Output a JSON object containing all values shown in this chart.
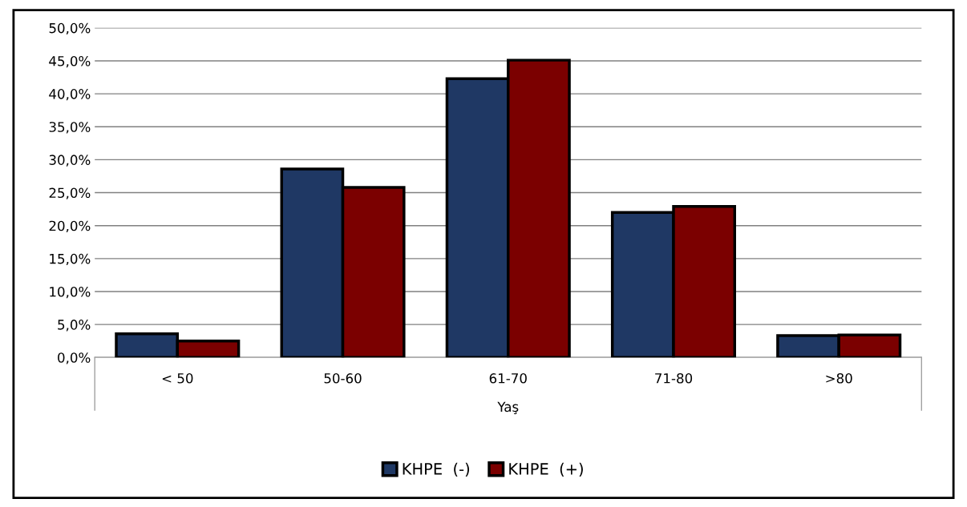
{
  "chart_data": {
    "type": "bar",
    "xlabel": "Yaş",
    "categories": [
      "< 50",
      "50-60",
      "61-70",
      "71-80",
      ">80"
    ],
    "series": [
      {
        "name": "KHPE  (-)",
        "color": "#1f3864",
        "values": [
          3.6,
          28.6,
          42.3,
          22.0,
          3.3
        ]
      },
      {
        "name": "KHPE  (+)",
        "color": "#7b0000",
        "values": [
          2.5,
          25.8,
          45.1,
          22.9,
          3.4
        ]
      }
    ],
    "ylim": [
      0,
      50
    ],
    "yticks": [
      {
        "value": 0,
        "label": "0,0%"
      },
      {
        "value": 5,
        "label": "5,0%"
      },
      {
        "value": 10,
        "label": "10,0%"
      },
      {
        "value": 15,
        "label": "15,0%"
      },
      {
        "value": 20,
        "label": "20,0%"
      },
      {
        "value": 25,
        "label": "25,0%"
      },
      {
        "value": 30,
        "label": "30,0%"
      },
      {
        "value": 35,
        "label": "35,0%"
      },
      {
        "value": 40,
        "label": "40,0%"
      },
      {
        "value": 45,
        "label": "45,0%"
      },
      {
        "value": 50,
        "label": "50,0%"
      }
    ],
    "grid": "y",
    "legend": "bottom"
  }
}
